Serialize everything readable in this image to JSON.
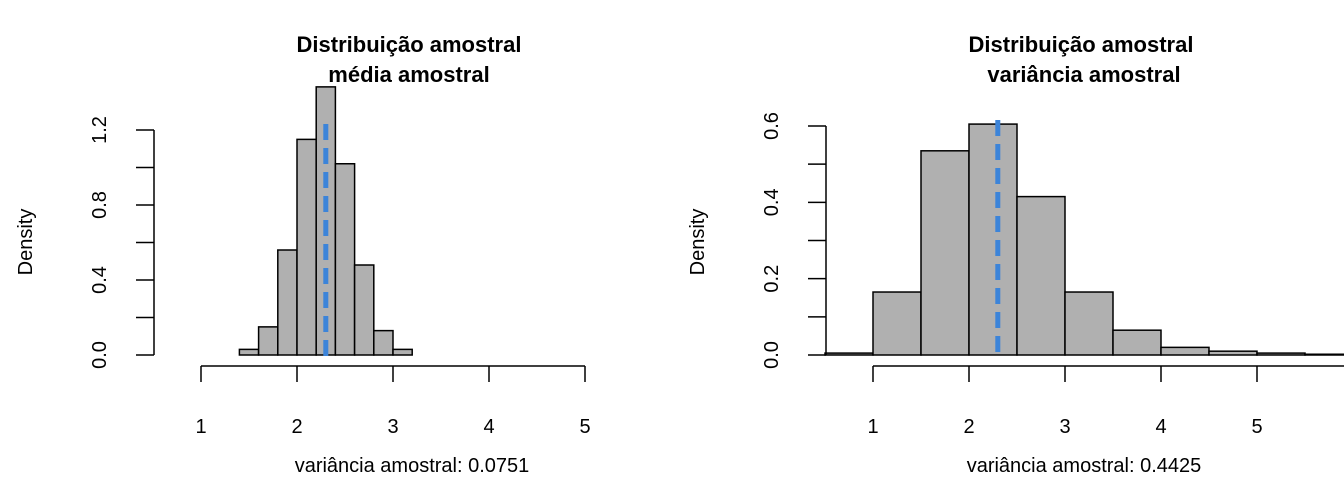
{
  "chart_data": [
    {
      "type": "bar",
      "title": "Distribuição amostral",
      "subtitle": "média amostral",
      "xlabel": "variância amostral:  0.0751",
      "ylabel": "Density",
      "xlim": [
        1,
        5
      ],
      "ylim": [
        0,
        1.4
      ],
      "x_ticks": [
        "1",
        "2",
        "3",
        "4",
        "5"
      ],
      "y_ticks": [
        "0.0",
        "0.4",
        "0.8",
        "1.2"
      ],
      "bin_edges": [
        1.4,
        1.6,
        1.8,
        2.0,
        2.2,
        2.4,
        2.6,
        2.8,
        3.0,
        3.2
      ],
      "values": [
        0.03,
        0.15,
        0.56,
        1.15,
        1.43,
        1.02,
        0.48,
        0.13,
        0.03
      ],
      "mean_line": 2.3,
      "bar_color": "#b0b0b0",
      "line_color": "#3c84d9"
    },
    {
      "type": "bar",
      "title": "Distribuição amostral",
      "subtitle": "variância amostral",
      "xlabel": "variância amostral:  0.4425",
      "ylabel": "Density",
      "xlim": [
        1,
        5
      ],
      "ylim": [
        0,
        0.6
      ],
      "x_ticks": [
        "1",
        "2",
        "3",
        "4",
        "5"
      ],
      "y_ticks": [
        "0.0",
        "0.2",
        "0.4",
        "0.6"
      ],
      "bin_edges": [
        0.5,
        1.0,
        1.5,
        2.0,
        2.5,
        3.0,
        3.5,
        4.0,
        4.5,
        5.0,
        5.5,
        6.0
      ],
      "values": [
        0.005,
        0.165,
        0.535,
        0.605,
        0.415,
        0.165,
        0.065,
        0.02,
        0.01,
        0.005,
        0.002
      ],
      "mean_line": 2.3,
      "bar_color": "#b0b0b0",
      "line_color": "#3c84d9"
    }
  ]
}
